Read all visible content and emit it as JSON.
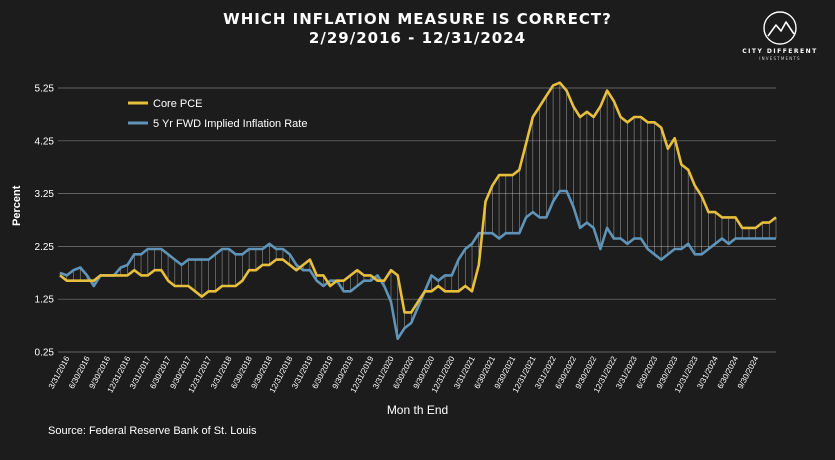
{
  "header": {
    "title_line1": "WHICH INFLATION MEASURE IS CORRECT?",
    "title_line2": "2/29/2016 - 12/31/2024"
  },
  "logo": {
    "name": "CITY DIFFERENT",
    "sub": "INVESTMENTS"
  },
  "footer": {
    "source": "Source: Federal Reserve Bank of St. Louis"
  },
  "chart_data": {
    "type": "line",
    "title": "WHICH INFLATION MEASURE IS CORRECT?",
    "subtitle": "2/29/2016 - 12/31/2024",
    "xlabel": "Mon th End",
    "ylabel": "Percent",
    "ylim": [
      0.25,
      5.25
    ],
    "yticks": [
      0.25,
      1.25,
      2.25,
      3.25,
      4.25,
      5.25
    ],
    "ytick_labels": [
      "0.25",
      "1.25",
      "2.25",
      "3.25",
      "4.25",
      "5.25"
    ],
    "grid": "horizontal",
    "legend_position": "top-left",
    "x_tick_labels": [
      "3/31/2016",
      "6/30/2016",
      "9/30/2016",
      "12/31/2016",
      "3/31/2017",
      "6/30/2017",
      "9/30/2017",
      "12/31/2017",
      "3/31/2018",
      "6/30/2018",
      "9/30/2018",
      "12/31/2018",
      "3/31/2019",
      "6/30/2019",
      "9/30/2019",
      "12/31/2019",
      "3/31/2020",
      "6/30/2020",
      "9/30/2020",
      "12/31/2020",
      "3/31/2021",
      "6/30/2021",
      "9/30/2021",
      "12/31/2021",
      "3/31/2022",
      "6/30/2022",
      "9/30/2022",
      "12/31/2022",
      "3/31/2023",
      "6/30/2023",
      "9/30/2023",
      "12/31/2023",
      "3/31/2024",
      "6/30/2024",
      "9/30/2024"
    ],
    "x": [
      "2/29/2016",
      "3/31/2016",
      "4/30/2016",
      "5/31/2016",
      "6/30/2016",
      "7/31/2016",
      "8/31/2016",
      "9/30/2016",
      "10/31/2016",
      "11/30/2016",
      "12/31/2016",
      "1/31/2017",
      "2/28/2017",
      "3/31/2017",
      "4/30/2017",
      "5/31/2017",
      "6/30/2017",
      "7/31/2017",
      "8/31/2017",
      "9/30/2017",
      "10/31/2017",
      "11/30/2017",
      "12/31/2017",
      "1/31/2018",
      "2/28/2018",
      "3/31/2018",
      "4/30/2018",
      "5/31/2018",
      "6/30/2018",
      "7/31/2018",
      "8/31/2018",
      "9/30/2018",
      "10/31/2018",
      "11/30/2018",
      "12/31/2018",
      "1/31/2019",
      "2/28/2019",
      "3/31/2019",
      "4/30/2019",
      "5/31/2019",
      "6/30/2019",
      "7/31/2019",
      "8/31/2019",
      "9/30/2019",
      "10/31/2019",
      "11/30/2019",
      "12/31/2019",
      "1/31/2020",
      "2/29/2020",
      "3/31/2020",
      "4/30/2020",
      "5/31/2020",
      "6/30/2020",
      "7/31/2020",
      "8/31/2020",
      "9/30/2020",
      "10/31/2020",
      "11/30/2020",
      "12/31/2020",
      "1/31/2021",
      "2/28/2021",
      "3/31/2021",
      "4/30/2021",
      "5/31/2021",
      "6/30/2021",
      "7/31/2021",
      "8/31/2021",
      "9/30/2021",
      "10/31/2021",
      "11/30/2021",
      "12/31/2021",
      "1/31/2022",
      "2/28/2022",
      "3/31/2022",
      "4/30/2022",
      "5/31/2022",
      "6/30/2022",
      "7/31/2022",
      "8/31/2022",
      "9/30/2022",
      "10/31/2022",
      "11/30/2022",
      "12/31/2022",
      "1/31/2023",
      "2/28/2023",
      "3/31/2023",
      "4/30/2023",
      "5/31/2023",
      "6/30/2023",
      "7/31/2023",
      "8/31/2023",
      "9/30/2023",
      "10/31/2023",
      "11/30/2023",
      "12/31/2023",
      "1/31/2024",
      "2/29/2024",
      "3/31/2024",
      "4/30/2024",
      "5/31/2024",
      "6/30/2024",
      "7/31/2024",
      "8/31/2024",
      "9/30/2024",
      "10/31/2024",
      "11/30/2024",
      "12/31/2024"
    ],
    "series": [
      {
        "name": "Core PCE",
        "color": "#e8bf3c",
        "values": [
          1.7,
          1.6,
          1.6,
          1.6,
          1.6,
          1.6,
          1.7,
          1.7,
          1.7,
          1.7,
          1.7,
          1.8,
          1.7,
          1.7,
          1.8,
          1.8,
          1.6,
          1.5,
          1.5,
          1.5,
          1.4,
          1.3,
          1.4,
          1.4,
          1.5,
          1.5,
          1.5,
          1.6,
          1.8,
          1.8,
          1.9,
          1.9,
          2.0,
          2.0,
          1.9,
          1.8,
          1.9,
          2.0,
          1.7,
          1.7,
          1.5,
          1.6,
          1.6,
          1.7,
          1.8,
          1.7,
          1.7,
          1.6,
          1.6,
          1.8,
          1.7,
          1.0,
          1.0,
          1.2,
          1.4,
          1.4,
          1.5,
          1.4,
          1.4,
          1.4,
          1.5,
          1.4,
          1.9,
          3.1,
          3.4,
          3.6,
          3.6,
          3.6,
          3.7,
          4.2,
          4.7,
          4.9,
          5.1,
          5.3,
          5.35,
          5.2,
          4.9,
          4.7,
          4.8,
          4.7,
          4.9,
          5.2,
          5.0,
          4.7,
          4.6,
          4.7,
          4.7,
          4.6,
          4.6,
          4.5,
          4.1,
          4.3,
          3.8,
          3.7,
          3.4,
          3.2,
          2.9,
          2.9,
          2.8,
          2.8,
          2.8,
          2.6,
          2.6,
          2.6,
          2.7,
          2.7,
          2.8
        ]
      },
      {
        "name": "5 Yr FWD Implied Inflation Rate",
        "color": "#5f94b8",
        "values": [
          1.75,
          1.7,
          1.8,
          1.85,
          1.7,
          1.5,
          1.7,
          1.7,
          1.7,
          1.85,
          1.9,
          2.1,
          2.1,
          2.2,
          2.2,
          2.2,
          2.1,
          2.0,
          1.9,
          2.0,
          2.0,
          2.0,
          2.0,
          2.1,
          2.2,
          2.2,
          2.1,
          2.1,
          2.2,
          2.2,
          2.2,
          2.3,
          2.2,
          2.2,
          2.1,
          1.9,
          1.8,
          1.8,
          1.6,
          1.5,
          1.6,
          1.6,
          1.4,
          1.4,
          1.5,
          1.6,
          1.6,
          1.7,
          1.5,
          1.2,
          0.5,
          0.7,
          0.8,
          1.1,
          1.4,
          1.7,
          1.6,
          1.7,
          1.7,
          2.0,
          2.2,
          2.3,
          2.5,
          2.5,
          2.5,
          2.4,
          2.5,
          2.5,
          2.5,
          2.8,
          2.9,
          2.8,
          2.8,
          3.1,
          3.3,
          3.3,
          3.0,
          2.6,
          2.7,
          2.6,
          2.2,
          2.6,
          2.4,
          2.4,
          2.3,
          2.4,
          2.4,
          2.2,
          2.1,
          2.0,
          2.1,
          2.2,
          2.2,
          2.3,
          2.1,
          2.1,
          2.2,
          2.3,
          2.4,
          2.3,
          2.4,
          2.4,
          2.4,
          2.4,
          2.4,
          2.4,
          2.4
        ]
      }
    ]
  }
}
